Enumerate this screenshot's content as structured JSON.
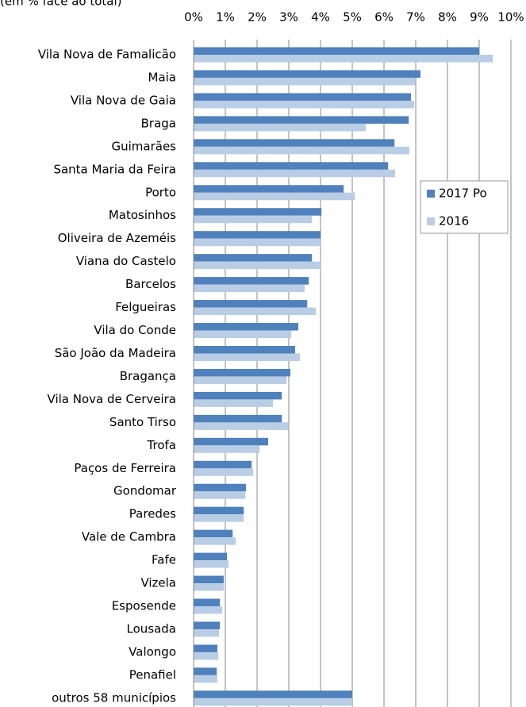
{
  "chart_data": {
    "type": "bar",
    "orientation": "horizontal",
    "subtitle": "(em % face ao total)",
    "categories": [
      "Vila Nova de Famalicão",
      "Maia",
      "Vila Nova de Gaia",
      "Braga",
      "Guimarães",
      "Santa Maria da Feira",
      "Porto",
      "Matosinhos",
      "Oliveira de Azeméis",
      "Viana do Castelo",
      "Barcelos",
      "Felgueiras",
      "Vila do Conde",
      "São João da Madeira",
      "Bragança",
      "Vila Nova de Cerveira",
      "Santo Tirso",
      "Trofa",
      "Paços de Ferreira",
      "Gondomar",
      "Paredes",
      "Vale de Cambra",
      "Fafe",
      "Vizela",
      "Esposende",
      "Lousada",
      "Valongo",
      "Penafiel",
      "outros 58 municípios"
    ],
    "series": [
      {
        "name": "2017 Po",
        "color": "#4f81bd",
        "values": [
          9.0,
          7.15,
          6.85,
          6.78,
          6.33,
          6.13,
          4.73,
          4.03,
          4.0,
          3.73,
          3.63,
          3.58,
          3.3,
          3.2,
          3.05,
          2.78,
          2.78,
          2.35,
          1.83,
          1.65,
          1.58,
          1.23,
          1.05,
          0.95,
          0.83,
          0.83,
          0.75,
          0.73,
          5.0
        ]
      },
      {
        "name": "2016",
        "color": "#b9cde5",
        "values": [
          9.43,
          6.98,
          6.95,
          5.43,
          6.8,
          6.35,
          5.08,
          3.73,
          4.0,
          4.0,
          3.5,
          3.85,
          3.08,
          3.35,
          2.93,
          2.5,
          2.98,
          2.08,
          1.88,
          1.63,
          1.58,
          1.33,
          1.1,
          0.95,
          0.9,
          0.8,
          0.78,
          0.75,
          5.0
        ]
      }
    ],
    "xlim": [
      0,
      10
    ],
    "xticks": [
      {
        "value": 0,
        "label": "0%"
      },
      {
        "value": 1,
        "label": "1%"
      },
      {
        "value": 2,
        "label": "2%"
      },
      {
        "value": 3,
        "label": "3%"
      },
      {
        "value": 4,
        "label": "4%"
      },
      {
        "value": 5,
        "label": "5%"
      },
      {
        "value": 6,
        "label": "6%"
      },
      {
        "value": 7,
        "label": "7%"
      },
      {
        "value": 8,
        "label": "8%"
      },
      {
        "value": 9,
        "label": "9%"
      },
      {
        "value": 10,
        "label": "10%"
      }
    ],
    "grid": true,
    "legend": "right"
  }
}
